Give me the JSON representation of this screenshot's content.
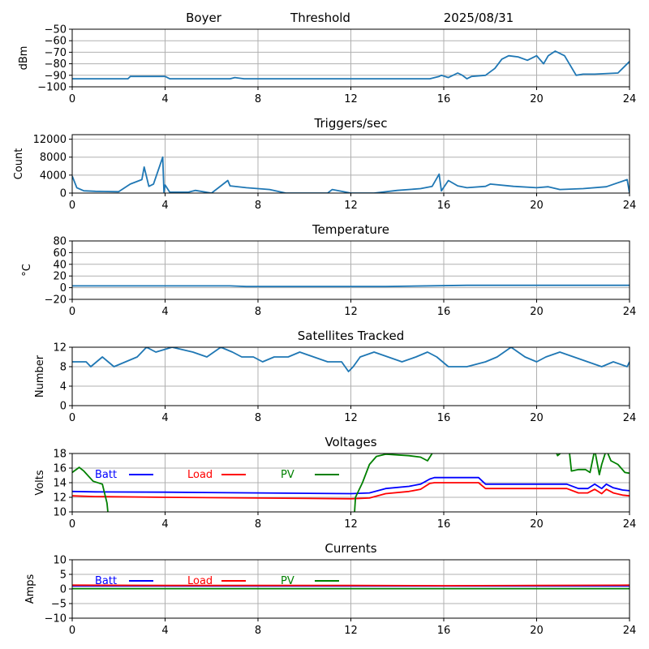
{
  "header": {
    "station": "Boyer",
    "mode": "Threshold",
    "date": "2025/08/31"
  },
  "colors": {
    "series": "#1f77b4",
    "batt": "#0000ff",
    "load": "#ff0000",
    "pv": "#008000",
    "grid": "#b0b0b0"
  },
  "chart_data": [
    {
      "id": "signal",
      "type": "line",
      "title": "",
      "xlabel": "",
      "ylabel": "dBm",
      "xlim": [
        0,
        24
      ],
      "ylim": [
        -100,
        -50
      ],
      "xticks": [
        0,
        4,
        8,
        12,
        16,
        20,
        24
      ],
      "yticks": [
        -100,
        -90,
        -80,
        -70,
        -60,
        -50
      ],
      "grid": true,
      "series": [
        {
          "color": "#1f77b4",
          "x": [
            0,
            2.4,
            2.5,
            4,
            4.2,
            6.8,
            7,
            7.4,
            15.4,
            15.8,
            15.9,
            16.2,
            16.6,
            16.8,
            17,
            17.2,
            17.8,
            18.2,
            18.5,
            18.8,
            19.2,
            19.6,
            20,
            20.3,
            20.5,
            20.8,
            21.2,
            21.7,
            22,
            22.5,
            23.5,
            24
          ],
          "y": [
            -93,
            -93,
            -91,
            -91,
            -93,
            -93,
            -92,
            -93,
            -93,
            -91,
            -90,
            -92,
            -88,
            -90,
            -93,
            -91,
            -90,
            -84,
            -76,
            -73,
            -74,
            -77,
            -73,
            -80,
            -73,
            -69,
            -73,
            -90,
            -89,
            -89,
            -88,
            -78
          ]
        }
      ]
    },
    {
      "id": "triggers",
      "type": "line",
      "title": "Triggers/sec",
      "xlabel": "",
      "ylabel": "Count",
      "xlim": [
        0,
        24
      ],
      "ylim": [
        0,
        13000
      ],
      "xticks": [
        0,
        4,
        8,
        12,
        16,
        20,
        24
      ],
      "yticks": [
        0,
        4000,
        8000,
        12000
      ],
      "grid": true,
      "series": [
        {
          "color": "#1f77b4",
          "x": [
            0,
            0.2,
            0.5,
            1,
            2,
            2.5,
            3,
            3.1,
            3.3,
            3.5,
            3.9,
            3.95,
            4,
            4.2,
            5,
            5.3,
            6,
            6.7,
            6.8,
            7.5,
            8,
            8.5,
            9.2,
            10,
            11,
            11.2,
            12,
            13,
            14,
            15,
            15.5,
            15.8,
            15.9,
            16.2,
            16.6,
            17,
            17.8,
            18,
            19,
            20,
            20.5,
            21,
            22,
            23,
            23.9,
            24
          ],
          "y": [
            3800,
            1200,
            500,
            400,
            300,
            2000,
            3000,
            5800,
            1500,
            2000,
            8000,
            200,
            1800,
            200,
            200,
            600,
            0,
            2800,
            1600,
            1200,
            1000,
            800,
            0,
            0,
            0,
            800,
            0,
            0,
            600,
            1000,
            1500,
            4200,
            500,
            2800,
            1600,
            1200,
            1500,
            2000,
            1500,
            1200,
            1400,
            800,
            1000,
            1400,
            3000,
            0
          ]
        }
      ]
    },
    {
      "id": "temperature",
      "type": "line",
      "title": "Temperature",
      "xlabel": "",
      "ylabel": "°C",
      "xlim": [
        0,
        24
      ],
      "ylim": [
        -20,
        80
      ],
      "xticks": [
        0,
        4,
        8,
        12,
        16,
        20,
        24
      ],
      "yticks": [
        -20,
        0,
        20,
        40,
        60,
        80
      ],
      "grid": true,
      "series": [
        {
          "color": "#1f77b4",
          "x": [
            0,
            6.8,
            7.5,
            13.5,
            17,
            24
          ],
          "y": [
            3,
            3,
            2,
            2,
            4,
            4
          ]
        }
      ]
    },
    {
      "id": "satellites",
      "type": "line",
      "title": "Satellites Tracked",
      "xlabel": "",
      "ylabel": "Number",
      "xlim": [
        0,
        24
      ],
      "ylim": [
        0,
        12
      ],
      "xticks": [
        0,
        4,
        8,
        12,
        16,
        20,
        24
      ],
      "yticks": [
        0,
        4,
        8,
        12
      ],
      "grid": true,
      "series": [
        {
          "color": "#1f77b4",
          "x": [
            0,
            0.6,
            0.8,
            1.3,
            1.8,
            2.3,
            2.8,
            3.2,
            3.6,
            4.3,
            5.2,
            5.8,
            6.4,
            6.9,
            7.3,
            7.8,
            8.2,
            8.7,
            9.3,
            9.8,
            10.4,
            11,
            11.6,
            11.9,
            12.1,
            12.4,
            13,
            13.6,
            14.2,
            14.8,
            15.3,
            15.7,
            16.2,
            17,
            17.8,
            18.3,
            18.9,
            19.5,
            20,
            20.4,
            21,
            21.6,
            22.2,
            22.8,
            23.3,
            23.9,
            24
          ],
          "y": [
            9,
            9,
            8,
            10,
            8,
            9,
            10,
            12,
            11,
            12,
            11,
            10,
            12,
            11,
            10,
            10,
            9,
            10,
            10,
            11,
            10,
            9,
            9,
            7,
            8,
            10,
            11,
            10,
            9,
            10,
            11,
            10,
            8,
            8,
            9,
            10,
            12,
            10,
            9,
            10,
            11,
            10,
            9,
            8,
            9,
            8,
            9
          ]
        }
      ]
    },
    {
      "id": "voltages",
      "type": "line",
      "title": "Voltages",
      "xlabel": "",
      "ylabel": "Volts",
      "xlim": [
        0,
        24
      ],
      "ylim": [
        10,
        18
      ],
      "xticks": [
        0,
        4,
        8,
        12,
        16,
        20,
        24
      ],
      "yticks": [
        10,
        12,
        14,
        16,
        18
      ],
      "grid": true,
      "legend": [
        "Batt",
        "Load",
        "PV"
      ],
      "series": [
        {
          "name": "Batt",
          "color": "#0000ff",
          "x": [
            0,
            1,
            4,
            8,
            12,
            12.8,
            13.5,
            14.5,
            15,
            15.4,
            15.6,
            17.5,
            17.8,
            21.3,
            21.8,
            22.2,
            22.5,
            22.8,
            23,
            23.3,
            23.7,
            24
          ],
          "y": [
            12.8,
            12.75,
            12.7,
            12.6,
            12.5,
            12.6,
            13.2,
            13.5,
            13.8,
            14.5,
            14.7,
            14.7,
            13.8,
            13.8,
            13.2,
            13.2,
            13.8,
            13.2,
            13.8,
            13.3,
            13.0,
            12.9
          ]
        },
        {
          "name": "Load",
          "color": "#ff0000",
          "x": [
            0,
            1,
            4,
            8,
            12,
            12.8,
            13.5,
            14.5,
            15,
            15.4,
            15.6,
            17.5,
            17.8,
            21.3,
            21.8,
            22.2,
            22.5,
            22.8,
            23,
            23.3,
            23.7,
            24
          ],
          "y": [
            12.2,
            12.1,
            12.0,
            11.9,
            11.8,
            11.9,
            12.5,
            12.8,
            13.1,
            13.9,
            14.0,
            14.0,
            13.2,
            13.2,
            12.6,
            12.6,
            13.1,
            12.5,
            13.1,
            12.6,
            12.3,
            12.2
          ]
        },
        {
          "name": "PV",
          "color": "#008000",
          "x": [
            0,
            0.3,
            0.5,
            0.9,
            1.3,
            1.5,
            1.55,
            12.15,
            12.2,
            12.5,
            12.8,
            13.1,
            13.5,
            14.5,
            15,
            15.3,
            15.6,
            20.8,
            20.9,
            21.2,
            21.4,
            21.5,
            21.8,
            22.1,
            22.3,
            22.5,
            22.7,
            22.8,
            23,
            23.2,
            23.5,
            23.8,
            24
          ],
          "y": [
            15.4,
            16.1,
            15.6,
            14.2,
            13.8,
            11.2,
            9.5,
            9.5,
            12,
            14,
            16.5,
            17.6,
            17.9,
            17.7,
            17.5,
            17.0,
            18.5,
            18.5,
            17.7,
            18.5,
            18.5,
            15.6,
            15.8,
            15.8,
            15.4,
            18.5,
            15.1,
            16.5,
            18.5,
            17.0,
            16.5,
            15.4,
            15.3
          ]
        }
      ]
    },
    {
      "id": "currents",
      "type": "line",
      "title": "Currents",
      "xlabel": "",
      "ylabel": "Amps",
      "xlim": [
        0,
        24
      ],
      "ylim": [
        -10,
        10
      ],
      "xticks": [
        0,
        4,
        8,
        12,
        16,
        20,
        24
      ],
      "yticks": [
        -10,
        -5,
        0,
        5,
        10
      ],
      "grid": true,
      "legend": [
        "Batt",
        "Load",
        "PV"
      ],
      "series": [
        {
          "name": "Batt",
          "color": "#0000ff",
          "x": [
            0,
            24
          ],
          "y": [
            1.0,
            1.0
          ]
        },
        {
          "name": "Load",
          "color": "#ff0000",
          "x": [
            0,
            4,
            8,
            12,
            16,
            20,
            24
          ],
          "y": [
            1.3,
            1.2,
            1.2,
            1.2,
            1.1,
            1.2,
            1.3
          ]
        },
        {
          "name": "PV",
          "color": "#008000",
          "x": [
            0,
            24
          ],
          "y": [
            0.1,
            0.1
          ]
        }
      ]
    }
  ]
}
